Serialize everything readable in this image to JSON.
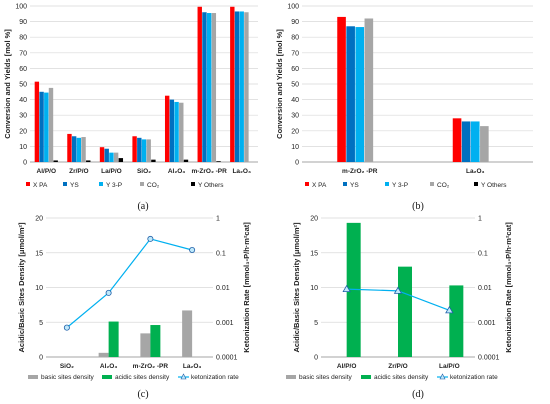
{
  "chart_data": [
    {
      "type": "bar",
      "panel_label": "(a)",
      "ylabel": "Conversion and Yields [mol %]",
      "ylim": [
        0,
        100
      ],
      "yticks": [
        "0",
        "10",
        "20",
        "30",
        "40",
        "50",
        "60",
        "70",
        "80",
        "90",
        "100"
      ],
      "categories": [
        "Al/P/O",
        "Zr/P/O",
        "La/P/O",
        "SiO₂",
        "Al₂O₃",
        "m-ZrO₂ -PR",
        "La₂O₃"
      ],
      "series": [
        {
          "name": "X PA",
          "color": "#ff0000",
          "values": [
            51.5,
            18,
            9.5,
            16.5,
            42.5,
            99.5,
            99.5
          ]
        },
        {
          "name": "YS",
          "color": "#0070c0",
          "values": [
            45,
            16.5,
            8.5,
            15.5,
            40,
            96,
            96.5
          ]
        },
        {
          "name": "Y 3-P",
          "color": "#00b0f0",
          "values": [
            44.5,
            15.5,
            6,
            14.5,
            38.5,
            95.5,
            96.5
          ]
        },
        {
          "name": "CO₂",
          "color": "#a6a6a6",
          "values": [
            47.5,
            16,
            6,
            14.5,
            38,
            95.5,
            96
          ]
        },
        {
          "name": "Y Others",
          "color": "#000000",
          "values": [
            1,
            1,
            2.5,
            1.5,
            1.5,
            0.5,
            0
          ]
        }
      ]
    },
    {
      "type": "bar",
      "panel_label": "(b)",
      "ylabel": "Conversion and Yields [mol %]",
      "ylim": [
        0,
        100
      ],
      "yticks": [
        "0",
        "10",
        "20",
        "30",
        "40",
        "50",
        "60",
        "70",
        "80",
        "90",
        "100"
      ],
      "categories": [
        "m-ZrO₂ -PR",
        "La₂O₃"
      ],
      "series": [
        {
          "name": "X PA",
          "color": "#ff0000",
          "values": [
            93,
            28
          ]
        },
        {
          "name": "YS",
          "color": "#0070c0",
          "values": [
            87,
            26
          ]
        },
        {
          "name": "Y 3-P",
          "color": "#00b0f0",
          "values": [
            86.5,
            26
          ]
        },
        {
          "name": "CO₂",
          "color": "#a6a6a6",
          "values": [
            92,
            23
          ]
        },
        {
          "name": "Y Others",
          "color": "#000000",
          "values": [
            0,
            0
          ]
        }
      ]
    },
    {
      "type": "bar",
      "panel_label": "(c)",
      "ylabel": "Acidic/Basic Sites Density [μmol/m²]",
      "y2label": "Ketonization Rate [mmol₃-P/h·m²cat]",
      "ylim": [
        0,
        20
      ],
      "yticks": [
        "0",
        "5",
        "10",
        "15",
        "20"
      ],
      "y2ticks": [
        "0.0001",
        "0.001",
        "0.01",
        "0.1",
        "1"
      ],
      "y2log": [
        0.0001,
        1
      ],
      "categories": [
        "SiO₂",
        "Al₂O₃",
        "m-ZrO₂ -PR",
        "La₂O₃"
      ],
      "series": [
        {
          "name": "basic sites density",
          "color": "#a6a6a6",
          "values": [
            0,
            0.6,
            3.4,
            6.7
          ]
        },
        {
          "name": "acidic sites density",
          "color": "#00b050",
          "values": [
            0,
            5.1,
            4.6,
            0
          ]
        },
        {
          "name": "ketonization rate",
          "color": "#00b0f0",
          "values": [
            0.0007,
            0.007,
            0.25,
            0.12
          ]
        }
      ]
    },
    {
      "type": "bar",
      "panel_label": "(d)",
      "ylabel": "Acidic/Basic Sites Density [μmol/m²]",
      "y2label": "Ketonization Rate [mmol₃-P/h·m²cat]",
      "ylim": [
        0,
        20
      ],
      "yticks": [
        "0",
        "5",
        "10",
        "15",
        "20"
      ],
      "y2ticks": [
        "0.0001",
        "0.001",
        "0.01",
        "0.1",
        "1"
      ],
      "y2log": [
        0.0001,
        1
      ],
      "categories": [
        "Al/P/O",
        "Zr/P/O",
        "La/P/O"
      ],
      "series": [
        {
          "name": "basic sites density",
          "color": "#a6a6a6",
          "values": [
            0,
            0,
            0
          ]
        },
        {
          "name": "acidic sites density",
          "color": "#00b050",
          "values": [
            19.3,
            13,
            10.3
          ]
        },
        {
          "name": "ketonization rate",
          "color": "#00b0f0",
          "values": [
            0.009,
            0.008,
            0.0022
          ]
        }
      ]
    }
  ]
}
